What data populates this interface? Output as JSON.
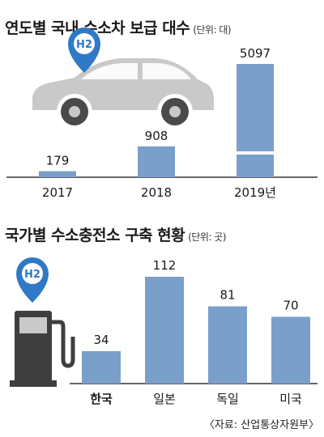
{
  "chart_data": [
    {
      "type": "bar",
      "title": "연도별 국내 수소차 보급 대수",
      "unit": "(단위: 대)",
      "categories": [
        "2017",
        "2018",
        "2019년"
      ],
      "values": [
        179,
        908,
        5097
      ],
      "colors": {
        "bar": "#7a9fcb",
        "axis": "#333333"
      },
      "axis_break": {
        "category": "2019년"
      },
      "icon": "hydrogen-car-icon",
      "icon_label": "H2"
    },
    {
      "type": "bar",
      "title": "국가별 수소충전소 구축 현황",
      "unit": "(단위: 곳)",
      "categories": [
        "한국",
        "일본",
        "독일",
        "미국"
      ],
      "values": [
        34,
        112,
        81,
        70
      ],
      "colors": {
        "bar": "#7a9fcb",
        "axis": "#333333"
      },
      "icon": "hydrogen-fuel-pump-icon",
      "icon_label": "H2"
    }
  ],
  "source": "〈자료: 산업통상자원부〉"
}
